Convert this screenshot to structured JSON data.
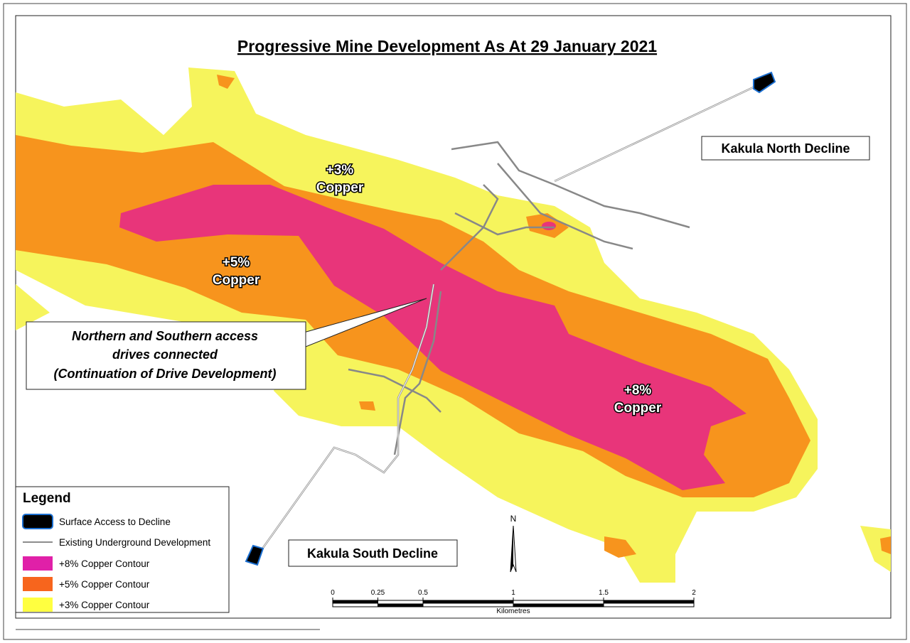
{
  "title": "Progressive Mine Development As At 29 January 2021",
  "zone_labels": [
    {
      "grade": "+3%",
      "metal": "Copper"
    },
    {
      "grade": "+5%",
      "metal": "Copper"
    },
    {
      "grade": "+8%",
      "metal": "Copper"
    }
  ],
  "callout": [
    "Northern and Southern access",
    "drives connected",
    "(Continuation of Drive Development)"
  ],
  "declines": [
    "Kakula North Decline",
    "Kakula South Decline"
  ],
  "legend": {
    "title": "Legend",
    "items": [
      "Surface Access to Decline",
      "Existing Underground Development",
      "+8% Copper Contour",
      "+5% Copper Contour",
      "+3% Copper Contour"
    ]
  },
  "scale_bar": {
    "ticks": [
      0,
      0.25,
      0.5,
      1,
      1.5,
      2
    ],
    "unit": "Kilometres"
  },
  "north": "N"
}
